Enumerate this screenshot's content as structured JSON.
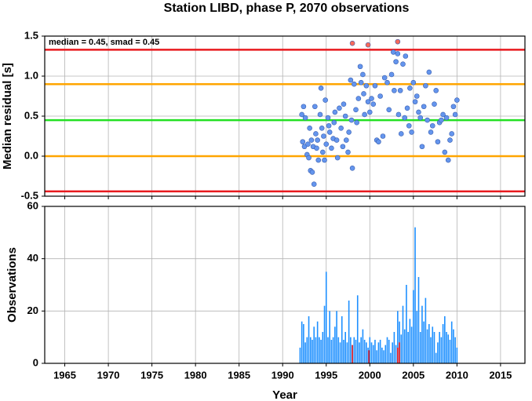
{
  "chart_data": [
    {
      "type": "scatter",
      "title": "Station LIBD, phase P, 2070 observations",
      "ylabel": "Median residual [s]",
      "annotation": "median = 0.45, smad = 0.45",
      "xlim": [
        1962.7,
        2017.8
      ],
      "xticks": [
        1965,
        1970,
        1975,
        1980,
        1985,
        1990,
        1995,
        2000,
        2005,
        2010,
        2015
      ],
      "ylim": [
        -0.5,
        1.5
      ],
      "yticks": [
        -0.5,
        {
          "value": 0,
          "label": "0.0"
        },
        0.5,
        {
          "value": 1,
          "label": "1.0"
        },
        1.5
      ],
      "grid": true,
      "hlines": [
        {
          "value": 1.33,
          "color": "#e8191e"
        },
        {
          "value": 0.9,
          "color": "#ffa500"
        },
        {
          "value": 0.45,
          "color": "#22e022"
        },
        {
          "value": 0,
          "color": "#ffa500"
        },
        {
          "value": -0.44,
          "color": "#e8191e"
        }
      ],
      "series": [
        {
          "color": "#6495ed",
          "x": [
            1992.2,
            1992.3,
            1992.4,
            1992.5,
            1992.6,
            1992.8,
            1992.9,
            1993.0,
            1993.1,
            1993.2,
            1993.3,
            1993.4,
            1993.5,
            1993.6,
            1993.7,
            1993.8,
            1993.9,
            1994.0,
            1994.1,
            1994.3,
            1994.4,
            1994.5,
            1994.6,
            1994.7,
            1994.8,
            1994.9,
            1995.0,
            1995.2,
            1995.3,
            1995.4,
            1995.6,
            1995.8,
            1995.9,
            1996.0,
            1996.2,
            1996.3,
            1996.5,
            1996.7,
            1996.9,
            1997.0,
            1997.2,
            1997.3,
            1997.5,
            1997.6,
            1997.8,
            1997.9,
            1998.0,
            1998.2,
            1998.4,
            1998.5,
            1998.7,
            1998.9,
            1999.0,
            1999.2,
            1999.3,
            1999.4,
            1999.6,
            1999.8,
            2000.0,
            2000.2,
            2000.4,
            2000.6,
            2000.8,
            2001.0,
            2001.2,
            2001.5,
            2001.7,
            2002.0,
            2002.2,
            2002.5,
            2002.7,
            2002.8,
            2003.0,
            2003.2,
            2003.3,
            2003.5,
            2003.6,
            2003.8,
            2004.0,
            2004.1,
            2004.3,
            2004.5,
            2004.6,
            2004.8,
            2005.0,
            2005.2,
            2005.4,
            2005.6,
            2005.8,
            2006.0,
            2006.2,
            2006.4,
            2006.6,
            2006.8,
            2007.0,
            2007.2,
            2007.4,
            2007.6,
            2007.8,
            2008.0,
            2008.2,
            2008.4,
            2008.6,
            2008.8,
            2009.0,
            2009.2,
            2009.4,
            2009.6,
            2009.8,
            2010.0
          ],
          "values": [
            0.52,
            0.18,
            0.62,
            0.12,
            0.48,
            0.02,
            0.15,
            -0.02,
            0.35,
            -0.18,
            0.2,
            -0.2,
            0.12,
            -0.35,
            0.62,
            0.28,
            0.1,
            0.2,
            -0.05,
            0.52,
            0.85,
            0.35,
            0.05,
            0.25,
            -0.05,
            0.7,
            0.15,
            0.48,
            0.38,
            0.3,
            0.1,
            0.22,
            0.42,
            0.55,
            0.2,
            -0.02,
            0.6,
            0.35,
            0.12,
            0.65,
            0.5,
            0.2,
            0.05,
            0.3,
            0.95,
            0.45,
            -0.15,
            0.9,
            0.58,
            0.42,
            0.72,
            1.12,
            0.92,
            1.02,
            0.78,
            0.52,
            0.88,
            0.68,
            0.55,
            0.72,
            0.65,
            0.88,
            0.2,
            0.18,
            0.75,
            0.25,
            0.98,
            0.92,
            0.58,
            1.02,
            1.3,
            0.82,
            1.18,
            1.28,
            0.52,
            0.82,
            0.28,
            1.15,
            0.48,
            1.25,
            0.6,
            0.38,
            0.85,
            0.3,
            0.92,
            0.68,
            0.75,
            0.55,
            0.48,
            0.12,
            0.62,
            0.88,
            0.45,
            1.05,
            0.3,
            0.38,
            0.65,
            0.82,
            0.18,
            0.42,
            0.45,
            0.52,
            0.05,
            0.48,
            -0.05,
            0.2,
            0.28,
            0.62,
            0.52,
            0.7
          ]
        },
        {
          "color": "#f86a5a",
          "x": [
            1998.0,
            1999.8,
            2003.2
          ],
          "values": [
            1.41,
            1.39,
            1.43
          ]
        }
      ]
    },
    {
      "type": "bar",
      "xlabel": "Year",
      "ylabel": "Observations",
      "xlim": [
        1962.7,
        2017.8
      ],
      "xticks": [
        1965,
        1970,
        1975,
        1980,
        1985,
        1990,
        1995,
        2000,
        2005,
        2010,
        2015
      ],
      "ylim": [
        0,
        60
      ],
      "yticks": [
        0,
        20,
        40,
        60
      ],
      "grid": true,
      "series": [
        {
          "color": "#1e90ff",
          "x": [
            1992.0,
            1992.2,
            1992.4,
            1992.6,
            1992.8,
            1993.0,
            1993.2,
            1993.4,
            1993.6,
            1993.8,
            1994.0,
            1994.2,
            1994.4,
            1994.6,
            1994.8,
            1995.0,
            1995.2,
            1995.4,
            1995.6,
            1995.8,
            1996.0,
            1996.2,
            1996.4,
            1996.6,
            1996.8,
            1997.0,
            1997.2,
            1997.4,
            1997.6,
            1997.8,
            1998.0,
            1998.2,
            1998.4,
            1998.6,
            1998.8,
            1999.0,
            1999.2,
            1999.4,
            1999.6,
            1999.8,
            2000.0,
            2000.2,
            2000.4,
            2000.6,
            2000.8,
            2001.0,
            2001.2,
            2001.4,
            2001.6,
            2001.8,
            2002.0,
            2002.2,
            2002.4,
            2002.6,
            2002.8,
            2003.0,
            2003.2,
            2003.4,
            2003.6,
            2003.8,
            2004.0,
            2004.2,
            2004.4,
            2004.6,
            2004.8,
            2005.0,
            2005.2,
            2005.4,
            2005.6,
            2005.8,
            2006.0,
            2006.2,
            2006.4,
            2006.6,
            2006.8,
            2007.0,
            2007.2,
            2007.4,
            2007.6,
            2007.8,
            2008.0,
            2008.2,
            2008.4,
            2008.6,
            2008.8,
            2009.0,
            2009.2,
            2009.4,
            2009.6,
            2009.8,
            2010.0
          ],
          "values": [
            6,
            16,
            15,
            8,
            10,
            18,
            10,
            9,
            14,
            10,
            16,
            10,
            9,
            12,
            22,
            35,
            10,
            20,
            9,
            10,
            14,
            20,
            10,
            8,
            18,
            9,
            12,
            8,
            24,
            10,
            7,
            10,
            9,
            26,
            8,
            10,
            13,
            9,
            8,
            6,
            10,
            8,
            7,
            9,
            5,
            8,
            9,
            6,
            5,
            7,
            10,
            9,
            4,
            8,
            12,
            7,
            20,
            16,
            11,
            22,
            13,
            30,
            12,
            17,
            14,
            28,
            52,
            20,
            33,
            12,
            22,
            16,
            25,
            13,
            15,
            10,
            14,
            12,
            4,
            8,
            12,
            10,
            15,
            18,
            12,
            11,
            9,
            16,
            13,
            10,
            6
          ]
        },
        {
          "color": "#e8191e",
          "x": [
            1998.0,
            1999.9,
            2003.2,
            2003.4
          ],
          "values": [
            7,
            5,
            6,
            8
          ]
        }
      ]
    }
  ]
}
